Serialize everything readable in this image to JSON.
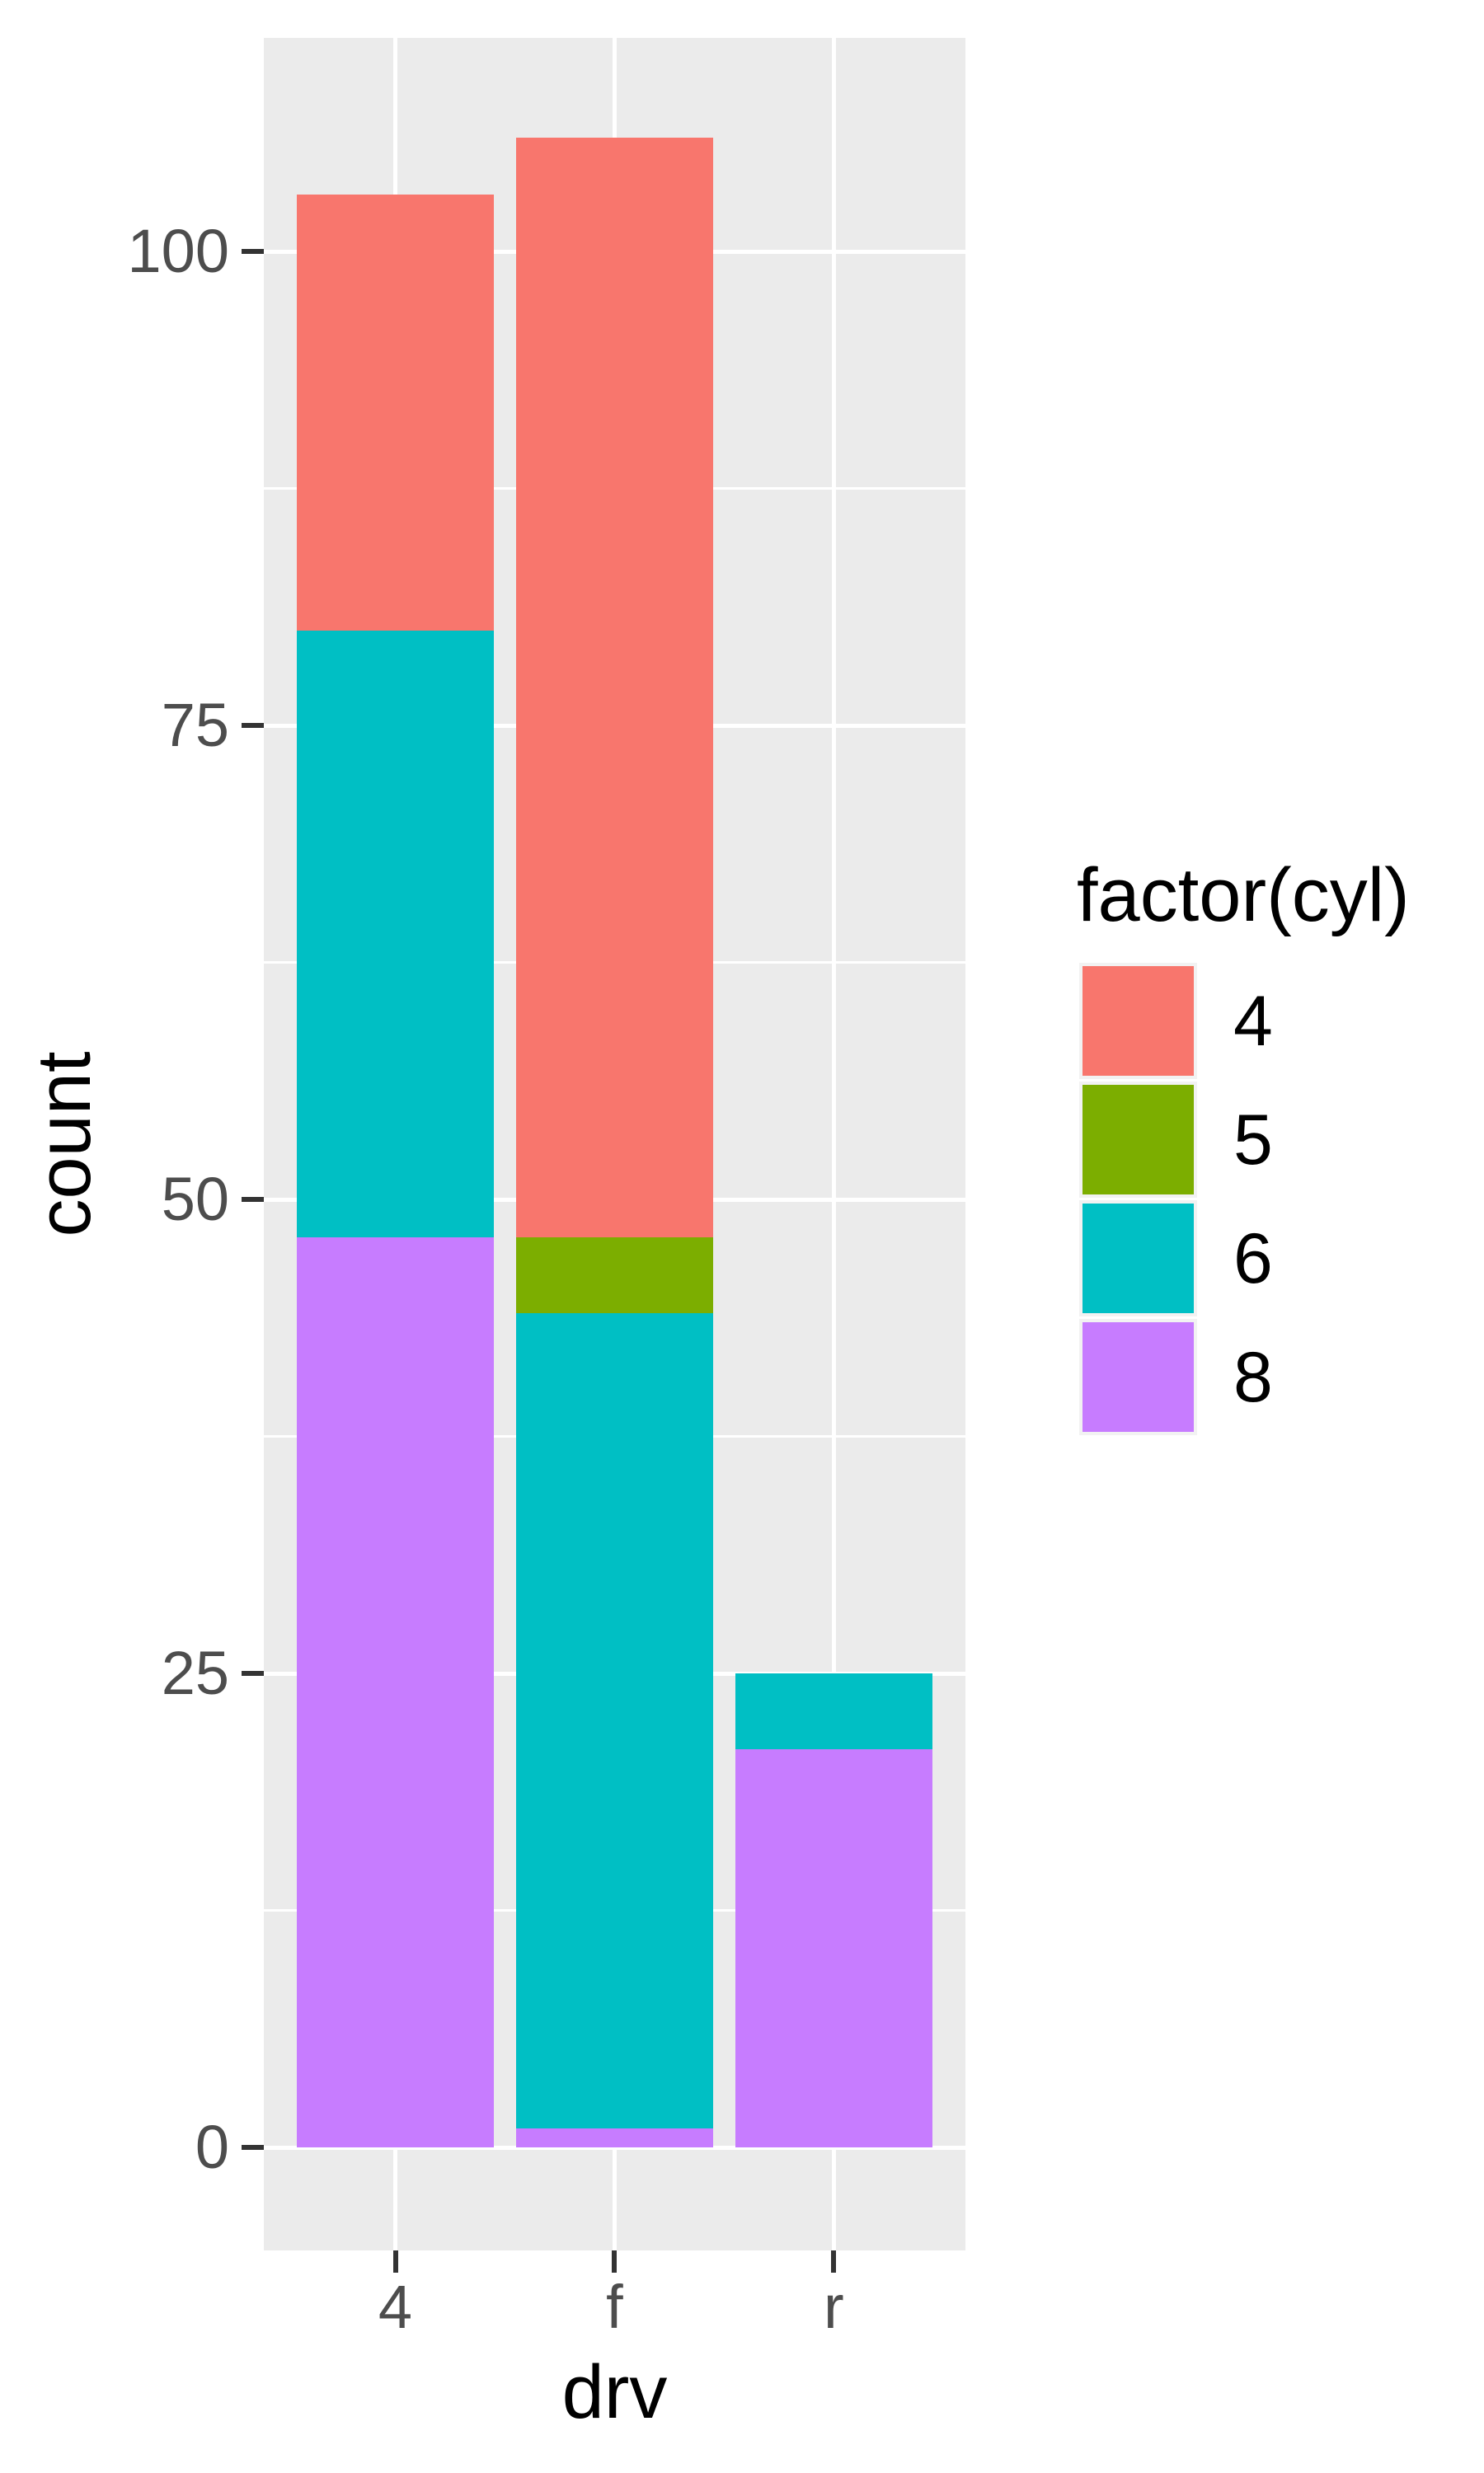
{
  "chart_data": {
    "type": "bar",
    "stacked": true,
    "title": "",
    "xlabel": "drv",
    "ylabel": "count",
    "categories": [
      "4",
      "f",
      "r"
    ],
    "series": [
      {
        "name": "4",
        "color": "#F8766D",
        "values": [
          23,
          58,
          0
        ]
      },
      {
        "name": "5",
        "color": "#7CAE00",
        "values": [
          0,
          4,
          0
        ]
      },
      {
        "name": "6",
        "color": "#00BFC4",
        "values": [
          32,
          43,
          4
        ]
      },
      {
        "name": "8",
        "color": "#C77CFF",
        "values": [
          48,
          1,
          21
        ]
      }
    ],
    "stack_order_bottom_to_top": [
      "8",
      "6",
      "5",
      "4"
    ],
    "totals": [
      103,
      106,
      25
    ],
    "yticks": [
      0,
      25,
      50,
      75,
      100
    ],
    "minor_gridlines": [
      12.5,
      37.5,
      62.5,
      87.5
    ],
    "ylim": [
      -5.3,
      111.3
    ],
    "grid": true,
    "legend": {
      "title": "factor(cyl)",
      "position": "right",
      "entries": [
        "4",
        "5",
        "6",
        "8"
      ]
    }
  },
  "colors": {
    "background": "#FFFFFF",
    "panel_background": "#EBEBEB",
    "gridline": "#FFFFFF",
    "tick_mark": "#333333",
    "tick_label": "#4D4D4D",
    "axis_title": "#000000",
    "legend_key_background": "#F2F2F2",
    "legend_text": "#000000"
  }
}
